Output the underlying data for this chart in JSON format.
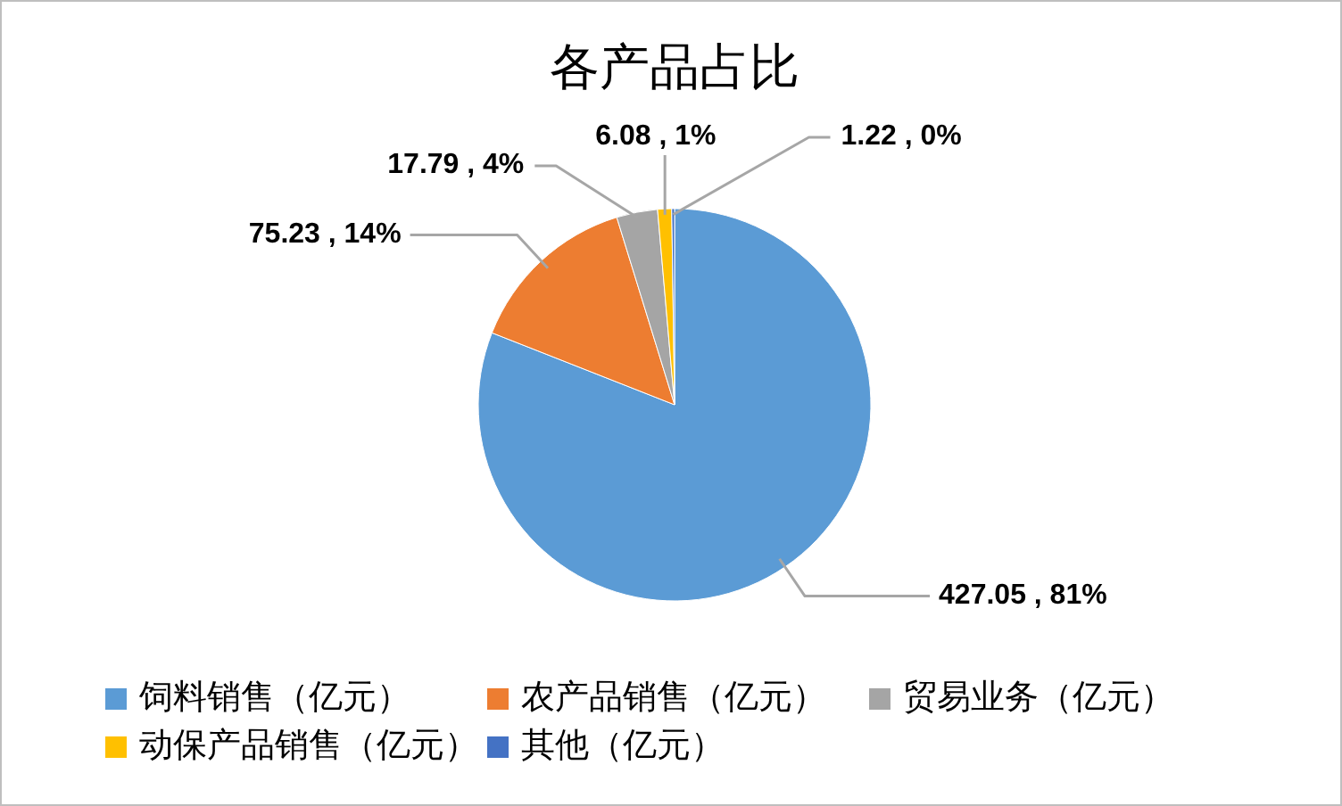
{
  "chart_data": {
    "type": "pie",
    "title": "各产品占比",
    "categories": [
      "饲料销售（亿元）",
      "农产品销售（亿元）",
      "贸易业务（亿元）",
      "动保产品销售（亿元）",
      "其他（亿元）"
    ],
    "values": [
      427.05,
      75.23,
      17.79,
      6.08,
      1.22
    ],
    "colors": [
      "#5b9bd5",
      "#ed7d31",
      "#a5a5a5",
      "#ffc000",
      "#4472c4"
    ],
    "value_labels": [
      "427.05 , 81%",
      "75.23 , 14%",
      "17.79 , 4%",
      "6.08 , 1%",
      "1.22 , 0%"
    ],
    "legend": "bottom"
  }
}
